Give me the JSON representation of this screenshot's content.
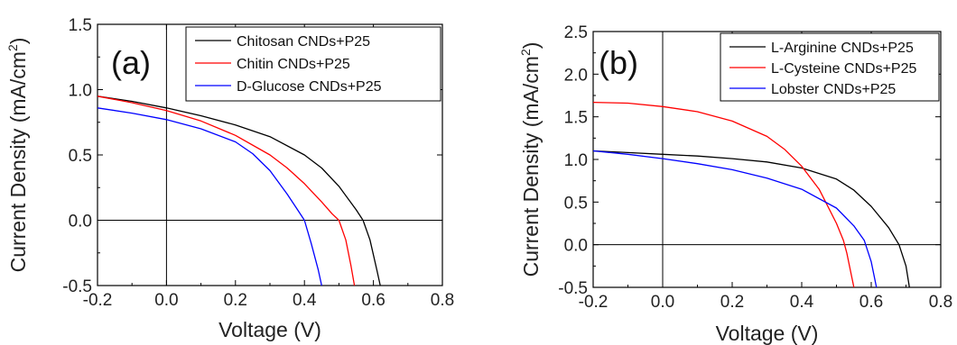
{
  "chart_data": [
    {
      "type": "line",
      "panel_label": "(a)",
      "xlabel": "Voltage (V)",
      "ylabel": "Current Density (mA/cm",
      "ylabel_sup": "2",
      "ylabel_close": ")",
      "xlim": [
        -0.2,
        0.8
      ],
      "ylim": [
        -0.5,
        1.5
      ],
      "xticks": [
        -0.2,
        0.0,
        0.2,
        0.4,
        0.6,
        0.8
      ],
      "xtick_labels": [
        "-0.2",
        "0.0",
        "0.2",
        "0.4",
        "0.6",
        "0.8"
      ],
      "yticks": [
        -0.5,
        0.0,
        0.5,
        1.0,
        1.5
      ],
      "ytick_labels": [
        "-0.5",
        "0.0",
        "0.5",
        "1.0",
        "1.5"
      ],
      "legend_position": "top-right",
      "grid": false,
      "series": [
        {
          "name": "Chitosan CNDs+P25",
          "color": "#000000",
          "x": [
            -0.2,
            -0.1,
            0.0,
            0.1,
            0.2,
            0.3,
            0.4,
            0.45,
            0.5,
            0.55,
            0.57,
            0.59,
            0.61,
            0.62
          ],
          "y": [
            0.95,
            0.91,
            0.86,
            0.8,
            0.73,
            0.64,
            0.5,
            0.4,
            0.26,
            0.08,
            0.0,
            -0.15,
            -0.38,
            -0.5
          ]
        },
        {
          "name": "Chitin CNDs+P25",
          "color": "#ff0000",
          "x": [
            -0.2,
            -0.1,
            0.0,
            0.1,
            0.2,
            0.3,
            0.35,
            0.4,
            0.45,
            0.48,
            0.5,
            0.52,
            0.535,
            0.545
          ],
          "y": [
            0.95,
            0.9,
            0.84,
            0.76,
            0.65,
            0.5,
            0.4,
            0.28,
            0.14,
            0.05,
            0.0,
            -0.15,
            -0.35,
            -0.5
          ]
        },
        {
          "name": "D-Glucose CNDs+P25",
          "color": "#0000ff",
          "x": [
            -0.2,
            -0.1,
            0.0,
            0.1,
            0.2,
            0.25,
            0.3,
            0.35,
            0.38,
            0.4,
            0.42,
            0.44,
            0.45
          ],
          "y": [
            0.86,
            0.82,
            0.77,
            0.7,
            0.6,
            0.51,
            0.38,
            0.2,
            0.08,
            0.0,
            -0.18,
            -0.38,
            -0.5
          ]
        }
      ]
    },
    {
      "type": "line",
      "panel_label": "(b)",
      "xlabel": "Voltage (V)",
      "ylabel": "Current Density (mA/cm",
      "ylabel_sup": "2",
      "ylabel_close": ")",
      "xlim": [
        -0.2,
        0.8
      ],
      "ylim": [
        -0.5,
        2.5
      ],
      "xticks": [
        -0.2,
        0.0,
        0.2,
        0.4,
        0.6,
        0.8
      ],
      "xtick_labels": [
        "-0.2",
        "0.0",
        "0.2",
        "0.4",
        "0.6",
        "0.8"
      ],
      "yticks": [
        -0.5,
        0.0,
        0.5,
        1.0,
        1.5,
        2.0,
        2.5
      ],
      "ytick_labels": [
        "-0.5",
        "0.0",
        "0.5",
        "1.0",
        "1.5",
        "2.0",
        "2.5"
      ],
      "legend_position": "top-right",
      "grid": false,
      "series": [
        {
          "name": "L-Arginine CNDs+P25",
          "color": "#000000",
          "x": [
            -0.2,
            -0.1,
            0.0,
            0.1,
            0.2,
            0.3,
            0.4,
            0.5,
            0.55,
            0.6,
            0.65,
            0.68,
            0.7,
            0.71
          ],
          "y": [
            1.1,
            1.08,
            1.06,
            1.04,
            1.01,
            0.97,
            0.9,
            0.77,
            0.64,
            0.45,
            0.2,
            0.0,
            -0.25,
            -0.5
          ]
        },
        {
          "name": "L-Cysteine CNDs+P25",
          "color": "#ff0000",
          "x": [
            -0.2,
            -0.1,
            0.0,
            0.1,
            0.2,
            0.3,
            0.35,
            0.4,
            0.45,
            0.5,
            0.52,
            0.53,
            0.54,
            0.55
          ],
          "y": [
            1.67,
            1.66,
            1.62,
            1.56,
            1.45,
            1.27,
            1.12,
            0.92,
            0.65,
            0.25,
            0.05,
            -0.1,
            -0.3,
            -0.5
          ]
        },
        {
          "name": "Lobster CNDs+P25",
          "color": "#0000ff",
          "x": [
            -0.2,
            -0.1,
            0.0,
            0.1,
            0.2,
            0.3,
            0.4,
            0.5,
            0.55,
            0.58,
            0.6,
            0.615
          ],
          "y": [
            1.1,
            1.06,
            1.01,
            0.95,
            0.88,
            0.78,
            0.65,
            0.43,
            0.22,
            0.05,
            -0.2,
            -0.5
          ]
        }
      ]
    }
  ]
}
